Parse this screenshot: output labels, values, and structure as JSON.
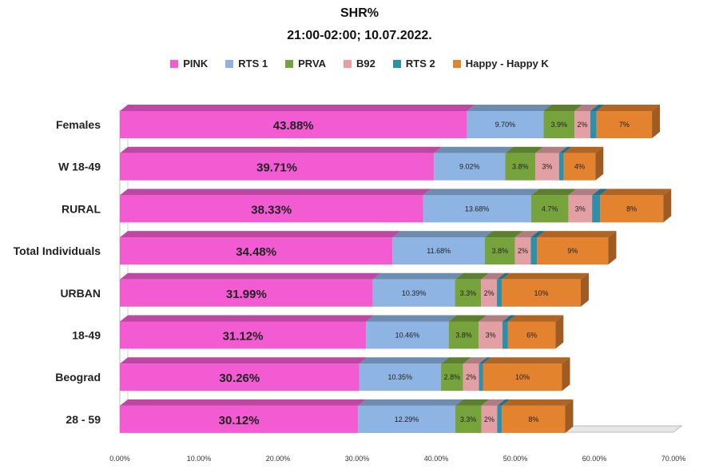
{
  "chart_data": {
    "type": "bar",
    "orientation": "horizontal",
    "stacked": true,
    "title": "SHR%",
    "subtitle": "21:00-02:00; 10.07.2022.",
    "categories": [
      "Females",
      "W 18-49",
      "RURAL",
      "Total Individuals",
      "URBAN",
      "18-49",
      "Beograd",
      "28 - 59"
    ],
    "series": [
      {
        "name": "PINK",
        "color": "#f25bd1",
        "values": [
          43.88,
          39.71,
          38.33,
          34.48,
          31.99,
          31.12,
          30.26,
          30.12
        ],
        "labels": [
          "43.88%",
          "39.71%",
          "38.33%",
          "34.48%",
          "31.99%",
          "31.12%",
          "30.26%",
          "30.12%"
        ]
      },
      {
        "name": "RTS 1",
        "color": "#8db4e2",
        "values": [
          9.7,
          9.02,
          13.68,
          11.68,
          10.39,
          10.46,
          10.35,
          12.29
        ],
        "labels": [
          "9.70%",
          "9.02%",
          "13.68%",
          "11.68%",
          "10.39%",
          "10.46%",
          "10.35%",
          "12.29%"
        ]
      },
      {
        "name": "PRVA",
        "color": "#77a33d",
        "values": [
          3.9,
          3.8,
          4.7,
          3.8,
          3.3,
          3.8,
          2.8,
          3.3
        ],
        "labels": [
          "3.9%",
          "3.8%",
          "4.7%",
          "3.8%",
          "3.3%",
          "3.8%",
          "2.8%",
          "3.3%"
        ]
      },
      {
        "name": "B92",
        "color": "#e2a0a4",
        "values": [
          2,
          3,
          3,
          2,
          2,
          3,
          2,
          2
        ],
        "labels": [
          "2%",
          "3%",
          "3%",
          "2%",
          "2%",
          "3%",
          "2%",
          "2%"
        ]
      },
      {
        "name": "RTS 2",
        "color": "#2f8fa8",
        "values": [
          0.8,
          0.6,
          1.0,
          0.8,
          0.6,
          0.7,
          0.5,
          0.6
        ],
        "labels": [
          "",
          "",
          "",
          "",
          "",
          "",
          "",
          ""
        ]
      },
      {
        "name": "Happy - Happy K",
        "color": "#e3822f",
        "values": [
          7,
          4,
          8,
          9,
          10,
          6,
          10,
          8
        ],
        "labels": [
          "7%",
          "4%",
          "8%",
          "9%",
          "10%",
          "6%",
          "10%",
          "8%"
        ]
      }
    ],
    "xlim": [
      0,
      70
    ],
    "xticks": [
      "0.00%",
      "10.00%",
      "20.00%",
      "30.00%",
      "40.00%",
      "50.00%",
      "60.00%",
      "70.00%"
    ],
    "grid": false,
    "legend_position": "top"
  }
}
